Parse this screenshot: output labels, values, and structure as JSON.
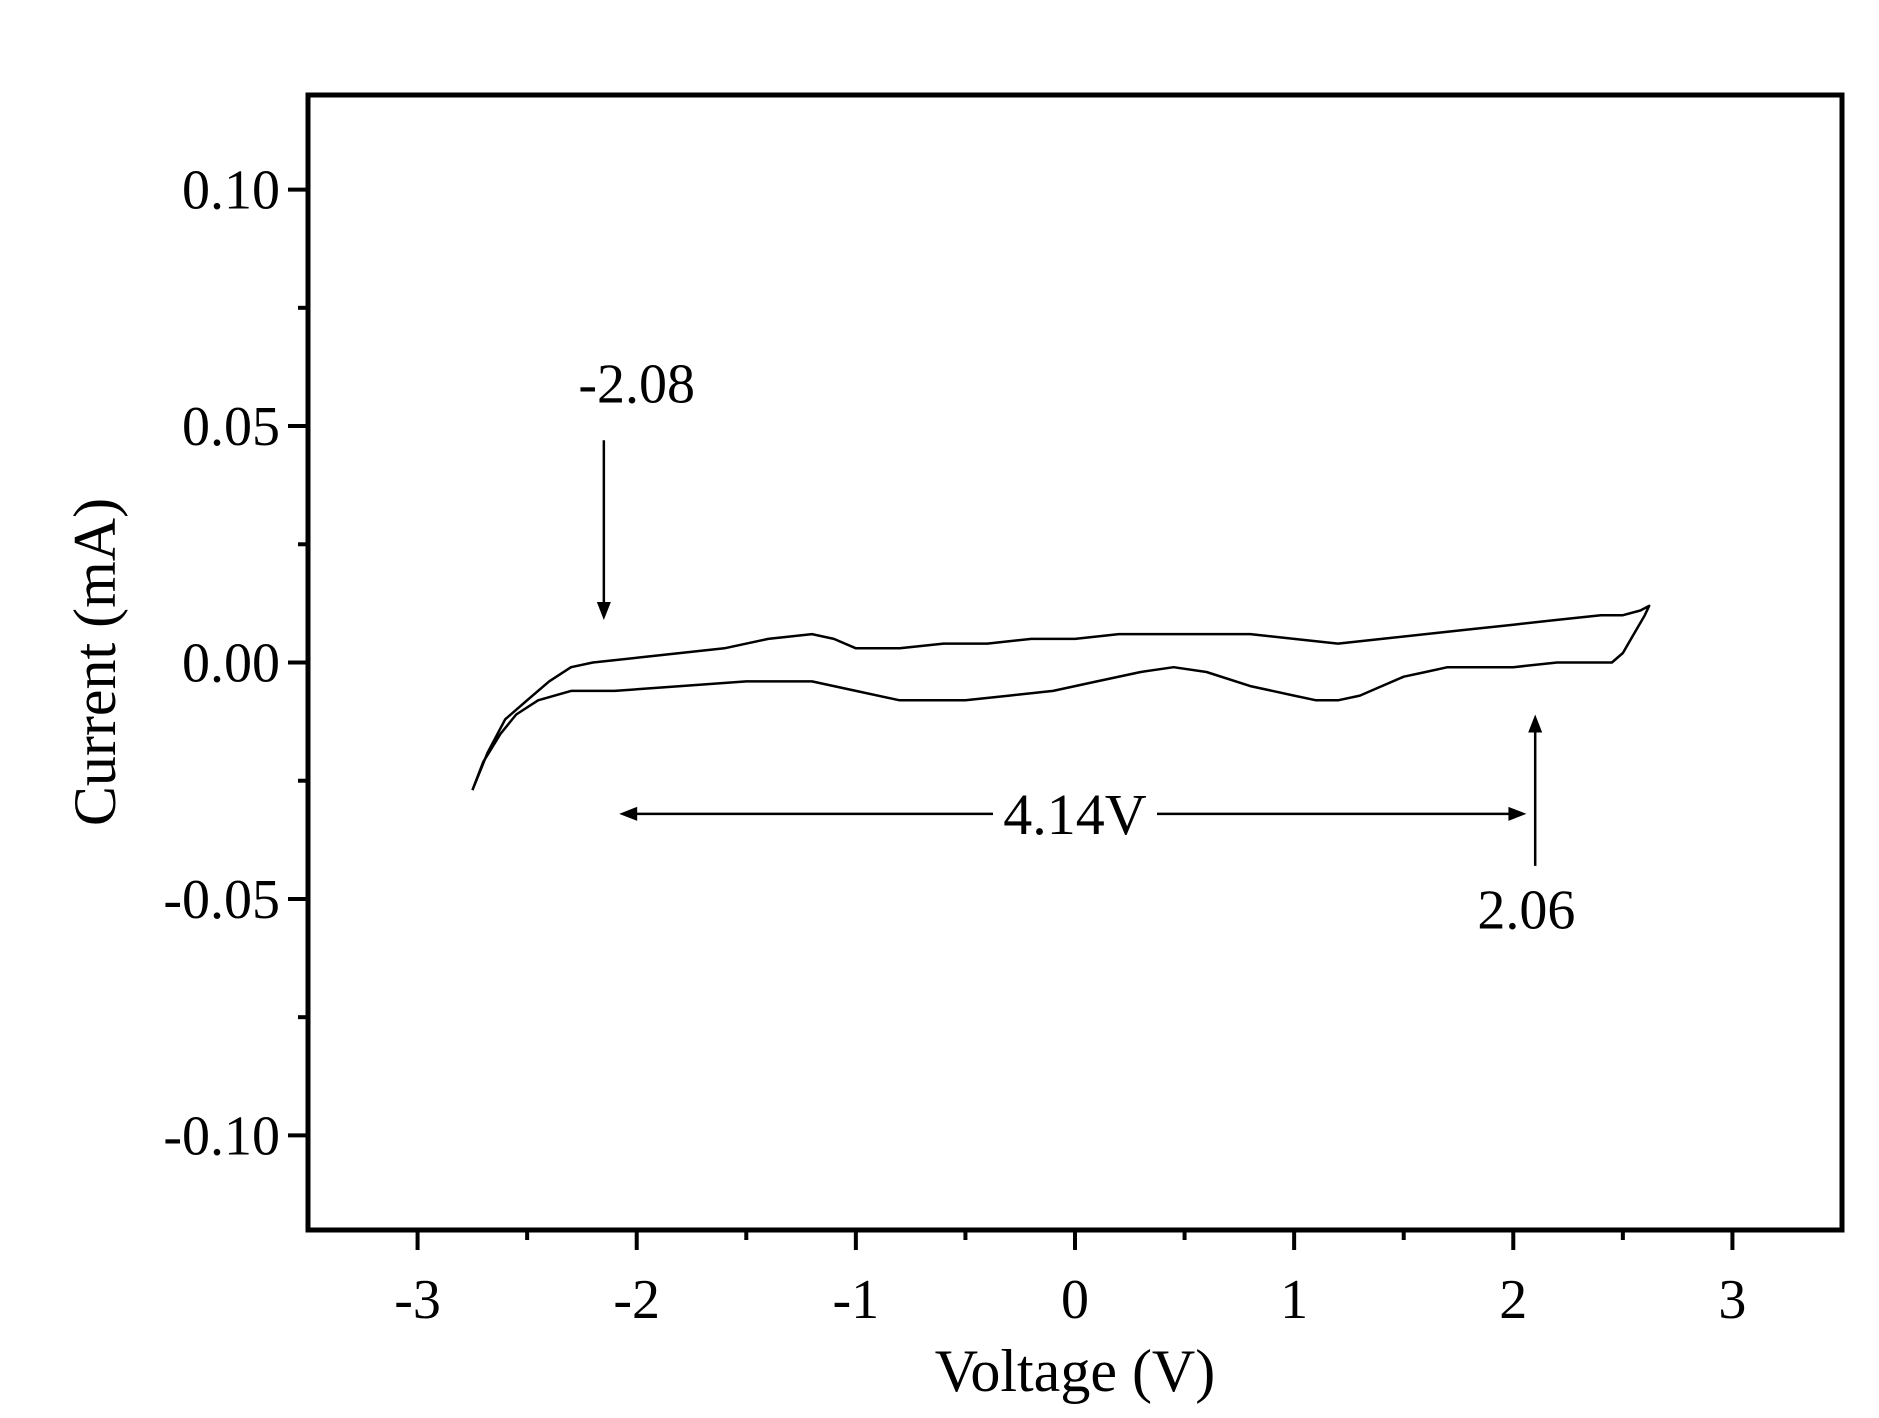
{
  "chart_data": {
    "type": "line",
    "xlabel": "Voltage (V)",
    "ylabel": "Current (mA)",
    "xlim": [
      -3.5,
      3.5
    ],
    "ylim": [
      -0.12,
      0.12
    ],
    "x_ticks": [
      -3,
      -2,
      -1,
      0,
      1,
      2,
      3
    ],
    "x_tick_labels": [
      "-3",
      "-2",
      "-1",
      "0",
      "1",
      "2",
      "3"
    ],
    "y_ticks": [
      0.1,
      0.05,
      0.0,
      -0.05,
      -0.1
    ],
    "y_tick_labels": [
      "0.10",
      "0.05",
      "0.00",
      "-0.05",
      "-0.10"
    ],
    "x_minor_step": 0.5,
    "y_minor_step": 0.025,
    "grid": false,
    "legend": "none",
    "series": [
      {
        "color": "#000000",
        "x": [
          -2.75,
          -2.68,
          -2.6,
          -2.5,
          -2.4,
          -2.3,
          -2.2,
          -2.0,
          -1.8,
          -1.6,
          -1.4,
          -1.2,
          -1.1,
          -1.0,
          -0.8,
          -0.6,
          -0.4,
          -0.2,
          0.0,
          0.2,
          0.4,
          0.6,
          0.8,
          1.0,
          1.2,
          1.4,
          1.6,
          1.8,
          2.0,
          2.2,
          2.4,
          2.5,
          2.58,
          2.62,
          2.6,
          2.55,
          2.5,
          2.45,
          2.35,
          2.2,
          2.0,
          1.8,
          1.7,
          1.6,
          1.5,
          1.4,
          1.3,
          1.2,
          1.1,
          1.0,
          0.8,
          0.6,
          0.45,
          0.3,
          0.1,
          -0.1,
          -0.3,
          -0.5,
          -0.8,
          -1.0,
          -1.2,
          -1.5,
          -1.8,
          -2.1,
          -2.3,
          -2.45,
          -2.55,
          -2.62,
          -2.7,
          -2.75
        ],
        "y": [
          -0.027,
          -0.019,
          -0.012,
          -0.008,
          -0.004,
          -0.001,
          0.0,
          0.001,
          0.002,
          0.003,
          0.005,
          0.006,
          0.005,
          0.003,
          0.003,
          0.004,
          0.004,
          0.005,
          0.005,
          0.006,
          0.006,
          0.006,
          0.006,
          0.005,
          0.004,
          0.005,
          0.006,
          0.007,
          0.008,
          0.009,
          0.01,
          0.01,
          0.011,
          0.012,
          0.01,
          0.006,
          0.002,
          0.0,
          0.0,
          0.0,
          -0.001,
          -0.001,
          -0.001,
          -0.002,
          -0.003,
          -0.005,
          -0.007,
          -0.008,
          -0.008,
          -0.007,
          -0.005,
          -0.002,
          -0.001,
          -0.002,
          -0.004,
          -0.006,
          -0.007,
          -0.008,
          -0.008,
          -0.006,
          -0.004,
          -0.004,
          -0.005,
          -0.006,
          -0.006,
          -0.008,
          -0.011,
          -0.015,
          -0.021,
          -0.027
        ]
      }
    ],
    "annotations": [
      {
        "text": "-2.08",
        "arrow_x": -2.15,
        "arrow_from_y": 0.047,
        "arrow_to_y": 0.009,
        "text_x": -2.0,
        "text_y": 0.055
      },
      {
        "text": "2.06",
        "arrow_x": 2.1,
        "arrow_from_y": -0.043,
        "arrow_to_y": -0.011,
        "text_x": 2.06,
        "text_y": -0.052
      },
      {
        "text": "4.14V",
        "arrow_left_x": -2.08,
        "arrow_right_x": 2.06,
        "y": -0.032,
        "text_x": 0.0
      }
    ]
  }
}
